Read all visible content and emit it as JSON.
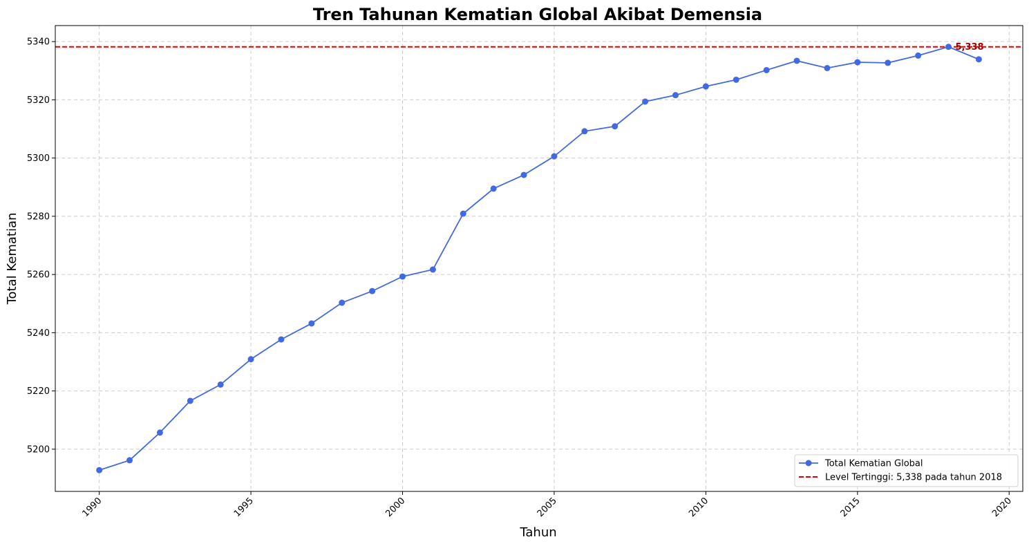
{
  "chart_data": {
    "type": "line",
    "title": "Tren Tahunan Kematian Global Akibat Demensia",
    "xlabel": "Tahun",
    "ylabel": "Total Kematian",
    "xlim": [
      1988.55,
      2020.45
    ],
    "ylim": [
      5185.5,
      5345.5
    ],
    "xticks": [
      1990,
      1995,
      2000,
      2005,
      2010,
      2015,
      2020
    ],
    "yticks": [
      5200,
      5220,
      5240,
      5260,
      5280,
      5300,
      5320,
      5340
    ],
    "grid": true,
    "legend_position": "lower-right",
    "series": [
      {
        "name": "Total Kematian Global",
        "color": "#4169e1",
        "x": [
          1990,
          1991,
          1992,
          1993,
          1994,
          1995,
          1996,
          1997,
          1998,
          1999,
          2000,
          2001,
          2002,
          2003,
          2004,
          2005,
          2006,
          2007,
          2008,
          2009,
          2010,
          2011,
          2012,
          2013,
          2014,
          2015,
          2016,
          2017,
          2018,
          2019
        ],
        "values": [
          5192.8,
          5196.2,
          5205.7,
          5216.6,
          5222.2,
          5230.9,
          5237.7,
          5243.2,
          5250.3,
          5254.3,
          5259.3,
          5261.7,
          5280.9,
          5289.5,
          5294.2,
          5300.6,
          5309.2,
          5310.9,
          5319.4,
          5321.6,
          5324.6,
          5326.9,
          5330.2,
          5333.4,
          5330.9,
          5332.9,
          5332.7,
          5335.2,
          5338.2,
          5333.9
        ]
      }
    ],
    "reference_line": {
      "name": "Level Tertinggi: 5,338 pada tahun 2018",
      "value": 5338.2,
      "color": "#e00000",
      "style": "dashed"
    },
    "annotation": {
      "text": "5,338",
      "x": 2018,
      "y": 5338.2,
      "color": "#a00000"
    }
  }
}
